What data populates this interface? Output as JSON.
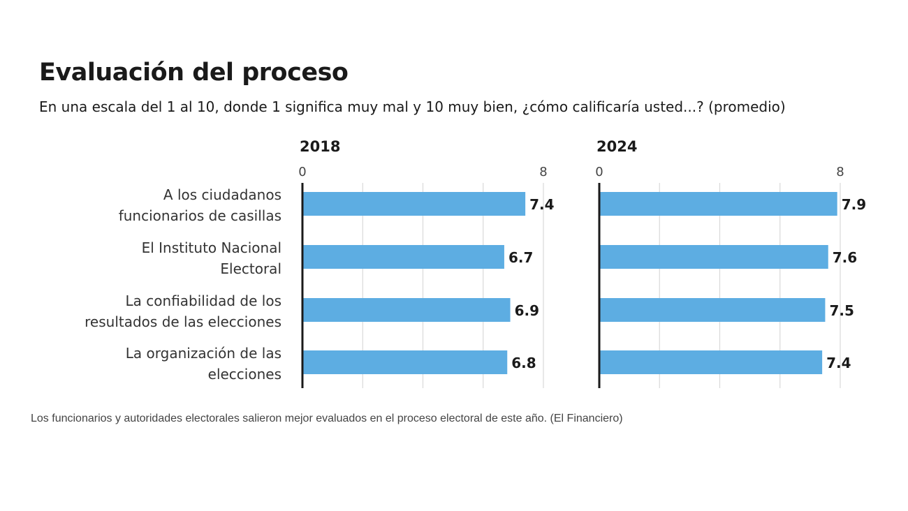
{
  "chart_data": {
    "type": "bar",
    "orientation": "horizontal",
    "title": "Evaluación del proceso",
    "subtitle": "En una escala del 1 al 10, donde 1 significa muy mal y 10 muy bien,  ¿cómo calificaría usted...? (promedio)",
    "categories": [
      [
        "A los ciudadanos",
        "funcionarios de casillas"
      ],
      [
        "El Instituto Nacional",
        "Electoral"
      ],
      [
        "La confiabilidad de los",
        "resultados de las elecciones"
      ],
      [
        "La organización de las",
        "elecciones"
      ]
    ],
    "panels": [
      {
        "name": "2018",
        "values": [
          7.4,
          6.7,
          6.9,
          6.8
        ],
        "value_labels": [
          "7.4",
          "6.7",
          "6.9",
          "6.8"
        ]
      },
      {
        "name": "2024",
        "values": [
          7.9,
          7.6,
          7.5,
          7.4
        ],
        "value_labels": [
          "7.9",
          "7.6",
          "7.5",
          "7.4"
        ]
      }
    ],
    "xlim": [
      0,
      8
    ],
    "tick_labels": [
      "0",
      "8"
    ],
    "gridlines": [
      2,
      4,
      6,
      8
    ],
    "grid": true,
    "bar_color": "#5dade2",
    "xlabel": "",
    "ylabel": ""
  },
  "caption": "Los funcionarios y autoridades electorales salieron mejor evaluados en el proceso electoral de este año. (El Financiero)"
}
